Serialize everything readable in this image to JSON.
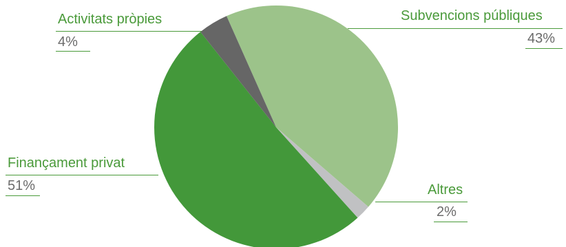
{
  "chart_data": {
    "type": "pie",
    "slices": [
      {
        "label": "Subvencions públiques",
        "value": 43,
        "value_label": "43%",
        "color": "#9cc38a"
      },
      {
        "label": "Altres",
        "value": 2,
        "value_label": "2%",
        "color": "#c0c1c3"
      },
      {
        "label": "Finançament privat",
        "value": 51,
        "value_label": "51%",
        "color": "#43983a"
      },
      {
        "label": "Activitats pròpies",
        "value": 4,
        "value_label": "4%",
        "color": "#666666"
      }
    ],
    "label_color": "#4a9a3a"
  }
}
